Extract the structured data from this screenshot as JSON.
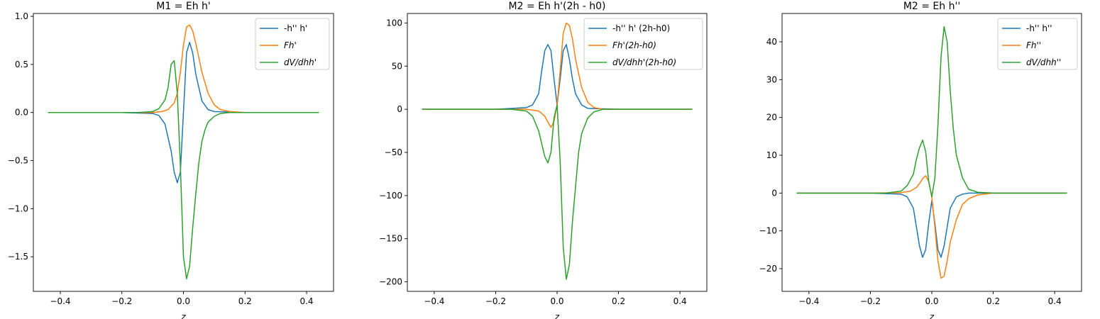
{
  "chart_data": [
    {
      "type": "line",
      "title": "M1 = Eh h'",
      "xlabel": "z",
      "ylabel": "",
      "xlim": [
        -0.4875,
        0.4875
      ],
      "ylim": [
        -1.86,
        1.03
      ],
      "xticks": [
        -0.4,
        -0.2,
        0.0,
        0.2,
        0.4
      ],
      "xtick_labels": [
        "−0.4",
        "−0.2",
        "0.0",
        "0.2",
        "0.4"
      ],
      "yticks": [
        -1.5,
        -1.0,
        -0.5,
        0.0,
        0.5,
        1.0
      ],
      "ytick_labels": [
        "−1.5",
        "−1.0",
        "−0.5",
        "0.0",
        "0.5",
        "1.0"
      ],
      "legend_position": "upper right",
      "grid": false,
      "series": [
        {
          "name": "-h'' h'",
          "color": "#1f77b4",
          "x": [
            -0.44,
            -0.2,
            -0.1,
            -0.08,
            -0.06,
            -0.04,
            -0.03,
            -0.02,
            -0.01,
            0.0,
            0.01,
            0.02,
            0.03,
            0.04,
            0.06,
            0.08,
            0.1,
            0.2,
            0.44
          ],
          "y": [
            0,
            0,
            -0.01,
            -0.03,
            -0.12,
            -0.4,
            -0.62,
            -0.73,
            -0.62,
            0.0,
            0.62,
            0.73,
            0.62,
            0.4,
            0.12,
            0.03,
            0.01,
            0,
            0
          ]
        },
        {
          "name": "Fh'",
          "color": "#ff7f0e",
          "x": [
            -0.44,
            -0.2,
            -0.1,
            -0.07,
            -0.05,
            -0.03,
            -0.02,
            -0.01,
            0.0,
            0.01,
            0.02,
            0.03,
            0.04,
            0.05,
            0.06,
            0.08,
            0.1,
            0.12,
            0.15,
            0.2,
            0.44
          ],
          "y": [
            0,
            0,
            0.0,
            0.01,
            0.03,
            0.1,
            0.2,
            0.42,
            0.7,
            0.89,
            0.91,
            0.85,
            0.72,
            0.57,
            0.42,
            0.2,
            0.08,
            0.03,
            0.01,
            0,
            0
          ]
        },
        {
          "name": "dV/dhh'",
          "color": "#2ca02c",
          "x": [
            -0.44,
            -0.15,
            -0.1,
            -0.08,
            -0.06,
            -0.05,
            -0.04,
            -0.03,
            -0.02,
            -0.01,
            0.0,
            0.01,
            0.02,
            0.03,
            0.04,
            0.05,
            0.06,
            0.07,
            0.08,
            0.1,
            0.12,
            0.15,
            0.2,
            0.44
          ],
          "y": [
            0,
            0,
            0.01,
            0.04,
            0.13,
            0.26,
            0.5,
            0.54,
            0.2,
            -0.55,
            -1.5,
            -1.73,
            -1.6,
            -1.2,
            -0.85,
            -0.52,
            -0.3,
            -0.18,
            -0.1,
            -0.04,
            -0.01,
            0.0,
            0,
            0
          ]
        }
      ]
    },
    {
      "type": "line",
      "title": "M2 = Eh h'(2h - h0)",
      "xlabel": "z",
      "ylabel": "",
      "xlim": [
        -0.4875,
        0.4875
      ],
      "ylim": [
        -211,
        111
      ],
      "xticks": [
        -0.4,
        -0.2,
        0.0,
        0.2,
        0.4
      ],
      "xtick_labels": [
        "−0.4",
        "−0.2",
        "0.0",
        "0.2",
        "0.4"
      ],
      "yticks": [
        -200,
        -150,
        -100,
        -50,
        0,
        50,
        100
      ],
      "ytick_labels": [
        "−200",
        "−150",
        "−100",
        "−50",
        "0",
        "50",
        "100"
      ],
      "legend_position": "upper right",
      "grid": false,
      "series": [
        {
          "name": "-h'' h' (2h-h0)",
          "color": "#1f77b4",
          "x": [
            -0.44,
            -0.2,
            -0.1,
            -0.08,
            -0.06,
            -0.05,
            -0.04,
            -0.03,
            -0.02,
            -0.01,
            0.0,
            0.01,
            0.02,
            0.03,
            0.04,
            0.05,
            0.06,
            0.08,
            0.1,
            0.2,
            0.44
          ],
          "y": [
            0,
            0,
            2,
            5,
            18,
            45,
            68,
            75,
            68,
            35,
            5,
            35,
            68,
            75,
            58,
            35,
            18,
            5,
            1,
            0,
            0
          ]
        },
        {
          "name": "Fh'(2h-h0)",
          "color": "#ff7f0e",
          "x": [
            -0.44,
            -0.2,
            -0.1,
            -0.06,
            -0.04,
            -0.03,
            -0.02,
            -0.01,
            0.0,
            0.01,
            0.02,
            0.03,
            0.04,
            0.05,
            0.06,
            0.08,
            0.1,
            0.12,
            0.15,
            0.2,
            0.44
          ],
          "y": [
            0,
            0,
            0,
            -2,
            -8,
            -15,
            -21,
            -14,
            5,
            45,
            88,
            100,
            97,
            82,
            58,
            25,
            8,
            2,
            0,
            0,
            0
          ]
        },
        {
          "name": "dV/dhh'(2h-h0)",
          "color": "#2ca02c",
          "x": [
            -0.44,
            -0.15,
            -0.1,
            -0.08,
            -0.06,
            -0.05,
            -0.04,
            -0.03,
            -0.02,
            -0.01,
            0.0,
            0.01,
            0.02,
            0.03,
            0.04,
            0.05,
            0.06,
            0.07,
            0.08,
            0.1,
            0.12,
            0.15,
            0.2,
            0.44
          ],
          "y": [
            0,
            0,
            -2,
            -8,
            -25,
            -40,
            -55,
            -62,
            -50,
            -10,
            5,
            -60,
            -160,
            -197,
            -180,
            -130,
            -90,
            -50,
            -28,
            -10,
            -3,
            0,
            0,
            0
          ]
        }
      ]
    },
    {
      "type": "line",
      "title": "M2 = Eh h''",
      "xlabel": "z",
      "ylabel": "",
      "xlim": [
        -0.4875,
        0.4875
      ],
      "ylim": [
        -26,
        47.5
      ],
      "xticks": [
        -0.4,
        -0.2,
        0.0,
        0.2,
        0.4
      ],
      "xtick_labels": [
        "−0.4",
        "−0.2",
        "0.0",
        "0.2",
        "0.4"
      ],
      "yticks": [
        -20,
        -10,
        0,
        10,
        20,
        30,
        40
      ],
      "ytick_labels": [
        "−20",
        "−10",
        "0",
        "10",
        "20",
        "30",
        "40"
      ],
      "legend_position": "upper right",
      "grid": false,
      "series": [
        {
          "name": "-h'' h''",
          "color": "#1f77b4",
          "x": [
            -0.44,
            -0.2,
            -0.1,
            -0.08,
            -0.06,
            -0.05,
            -0.04,
            -0.03,
            -0.02,
            -0.01,
            0.0,
            0.01,
            0.02,
            0.03,
            0.04,
            0.05,
            0.06,
            0.08,
            0.1,
            0.12,
            0.2,
            0.44
          ],
          "y": [
            0,
            0,
            -0.3,
            -1,
            -4,
            -9,
            -14,
            -17,
            -15,
            -8,
            -2,
            -8,
            -15,
            -17,
            -14,
            -9,
            -4,
            -1,
            -0.3,
            0,
            0,
            0
          ]
        },
        {
          "name": "Fh''",
          "color": "#ff7f0e",
          "x": [
            -0.44,
            -0.2,
            -0.1,
            -0.07,
            -0.05,
            -0.04,
            -0.03,
            -0.02,
            -0.01,
            0.0,
            0.01,
            0.02,
            0.03,
            0.04,
            0.05,
            0.06,
            0.08,
            0.1,
            0.12,
            0.15,
            0.2,
            0.44
          ],
          "y": [
            0,
            0,
            0.1,
            0.5,
            1.5,
            2.5,
            3.8,
            4.6,
            3,
            -1,
            -9,
            -18,
            -22.5,
            -22,
            -18,
            -13,
            -7,
            -3,
            -1.5,
            -0.5,
            0,
            0
          ]
        },
        {
          "name": "dV/dhh''",
          "color": "#2ca02c",
          "x": [
            -0.44,
            -0.15,
            -0.1,
            -0.08,
            -0.06,
            -0.05,
            -0.04,
            -0.03,
            -0.02,
            -0.01,
            0.0,
            0.01,
            0.02,
            0.03,
            0.04,
            0.05,
            0.06,
            0.07,
            0.08,
            0.1,
            0.12,
            0.15,
            0.2,
            0.44
          ],
          "y": [
            0,
            0,
            0.5,
            2,
            5,
            9,
            12,
            14,
            11,
            3,
            -1,
            4,
            18,
            36,
            44,
            40,
            27,
            17,
            10,
            4,
            1,
            0.2,
            0,
            0
          ]
        }
      ]
    }
  ]
}
